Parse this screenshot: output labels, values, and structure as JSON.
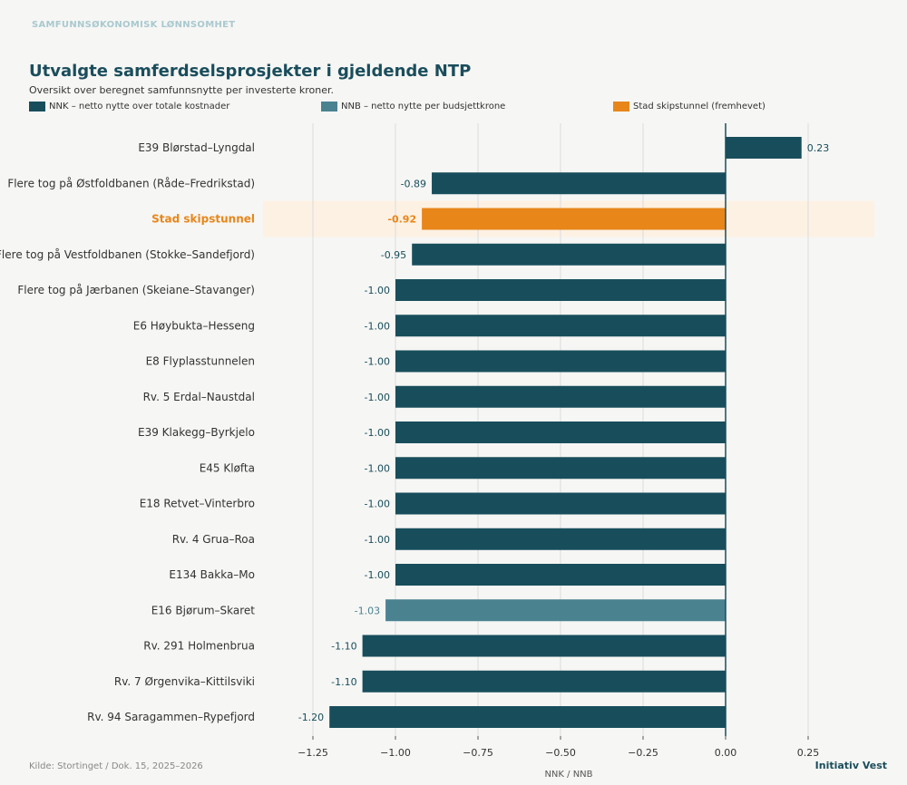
{
  "header": {
    "kicker": "SAMFUNNSØKONOMISK LØNNSOMHET",
    "title": "Utvalgte samferdselsprosjekter i gjeldende NTP",
    "subtitle": "Oversikt over beregnet samfunnsnytte per investerte kroner."
  },
  "legend": [
    {
      "label": "NNK – netto nytte over totale kostnader",
      "color": "#184e5c"
    },
    {
      "label": "NNB – netto nytte per budsjettkrone",
      "color": "#4a8290"
    },
    {
      "label": "Stad skipstunnel (fremhevet)",
      "color": "#e8861a"
    }
  ],
  "footer": {
    "source": "Kilde: Stortinget / Dok. 15, 2025–2026",
    "brand": "Initiativ Vest"
  },
  "colors": {
    "nnk": "#184e5c",
    "nnb": "#4a8290",
    "highlight": "#e8861a",
    "highlight_bg": "#fdf1e3"
  },
  "chart_data": {
    "type": "bar",
    "orientation": "horizontal",
    "xlabel": "NNK / NNB",
    "xlim": [
      -1.3,
      0.35
    ],
    "xticks": [
      -1.25,
      -1.0,
      -0.75,
      -0.5,
      -0.25,
      0.0,
      0.25
    ],
    "xtick_labels": [
      "−1.25",
      "−1.00",
      "−0.75",
      "−0.50",
      "−0.25",
      "0.00",
      "0.25"
    ],
    "grid": true,
    "categories": [
      "E39 Blørstad–Lyngdal",
      "Flere tog på Østfoldbanen (Råde–Fredrikstad)",
      "Stad skipstunnel",
      "Flere tog på Vestfoldbanen (Stokke–Sandefjord)",
      "Flere tog på Jærbanen (Skeiane–Stavanger)",
      "E6 Høybukta–Hesseng",
      "E8 Flyplasstunnelen",
      "Rv. 5 Erdal–Naustdal",
      "E39 Klakegg–Byrkjelo",
      "E45 Kløfta",
      "E18 Retvet–Vinterbro",
      "Rv. 4 Grua–Roa",
      "E134 Bakka–Mo",
      "E16 Bjørum–Skaret",
      "Rv. 291 Holmenbrua",
      "Rv. 7 Ørgenvika–Kittilsviki",
      "Rv. 94 Saragammen–Rypefjord"
    ],
    "values": [
      0.23,
      -0.89,
      -0.92,
      -0.95,
      -1.0,
      -1.0,
      -1.0,
      -1.0,
      -1.0,
      -1.0,
      -1.0,
      -1.0,
      -1.0,
      -1.03,
      -1.1,
      -1.1,
      -1.2
    ],
    "value_labels": [
      "0.23",
      "-0.89",
      "-0.92",
      "-0.95",
      "-1.00",
      "-1.00",
      "-1.00",
      "-1.00",
      "-1.00",
      "-1.00",
      "-1.00",
      "-1.00",
      "-1.00",
      "-1.03",
      "-1.10",
      "-1.10",
      "-1.20"
    ],
    "measure": [
      "NNK",
      "NNK",
      "highlight",
      "NNK",
      "NNK",
      "NNK",
      "NNK",
      "NNK",
      "NNK",
      "NNK",
      "NNK",
      "NNK",
      "NNK",
      "NNB",
      "NNK",
      "NNK",
      "NNK"
    ]
  }
}
